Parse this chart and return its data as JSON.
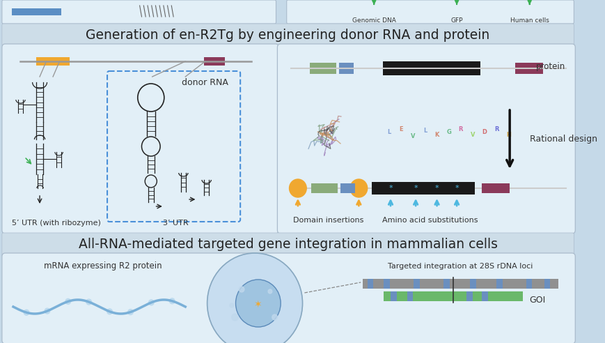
{
  "bg_color": "#c5d9e8",
  "panel_bg": "#cddde8",
  "light_panel": "#e2eff7",
  "title1": "Generation of en-R2Tg by engineering donor RNA and protein",
  "title2": "All-RNA-mediated targeted gene integration in mammalian cells",
  "colors": {
    "green_box": "#8aab7a",
    "blue_box": "#6a8fbf",
    "dark_box": "#1a1a1a",
    "maroon_box": "#8b3a5a",
    "orange_circle": "#f0a830",
    "cyan_arrow": "#4db8e0",
    "orange_arrow": "#f0a830",
    "rna_blue": "#5b8ec4",
    "cell_blue": "#a8c8e8",
    "nucleus_blue": "#8ab8d8",
    "genomic_green": "#3cb054",
    "gray_line": "#999999",
    "rna_dark": "#222222",
    "green_goi": "#6ab86a"
  },
  "labels": {
    "donor_rna": "donor RNA",
    "utr5": "5’ UTR (with ribozyme)",
    "utr3": "3’ UTR",
    "protein": "protein",
    "rational_design": "Rational design",
    "domain_insertions": "Domain insertions",
    "amino_acid_sub": "Amino acid substitutions",
    "mrna": "mRNA expressing R2 protein",
    "targeted_int": "Targeted integration at 28S rDNA loci",
    "goi": "GOI",
    "genomic_dna": "Genomic DNA",
    "gfp": "GFP",
    "human_cells": "Human cells"
  }
}
